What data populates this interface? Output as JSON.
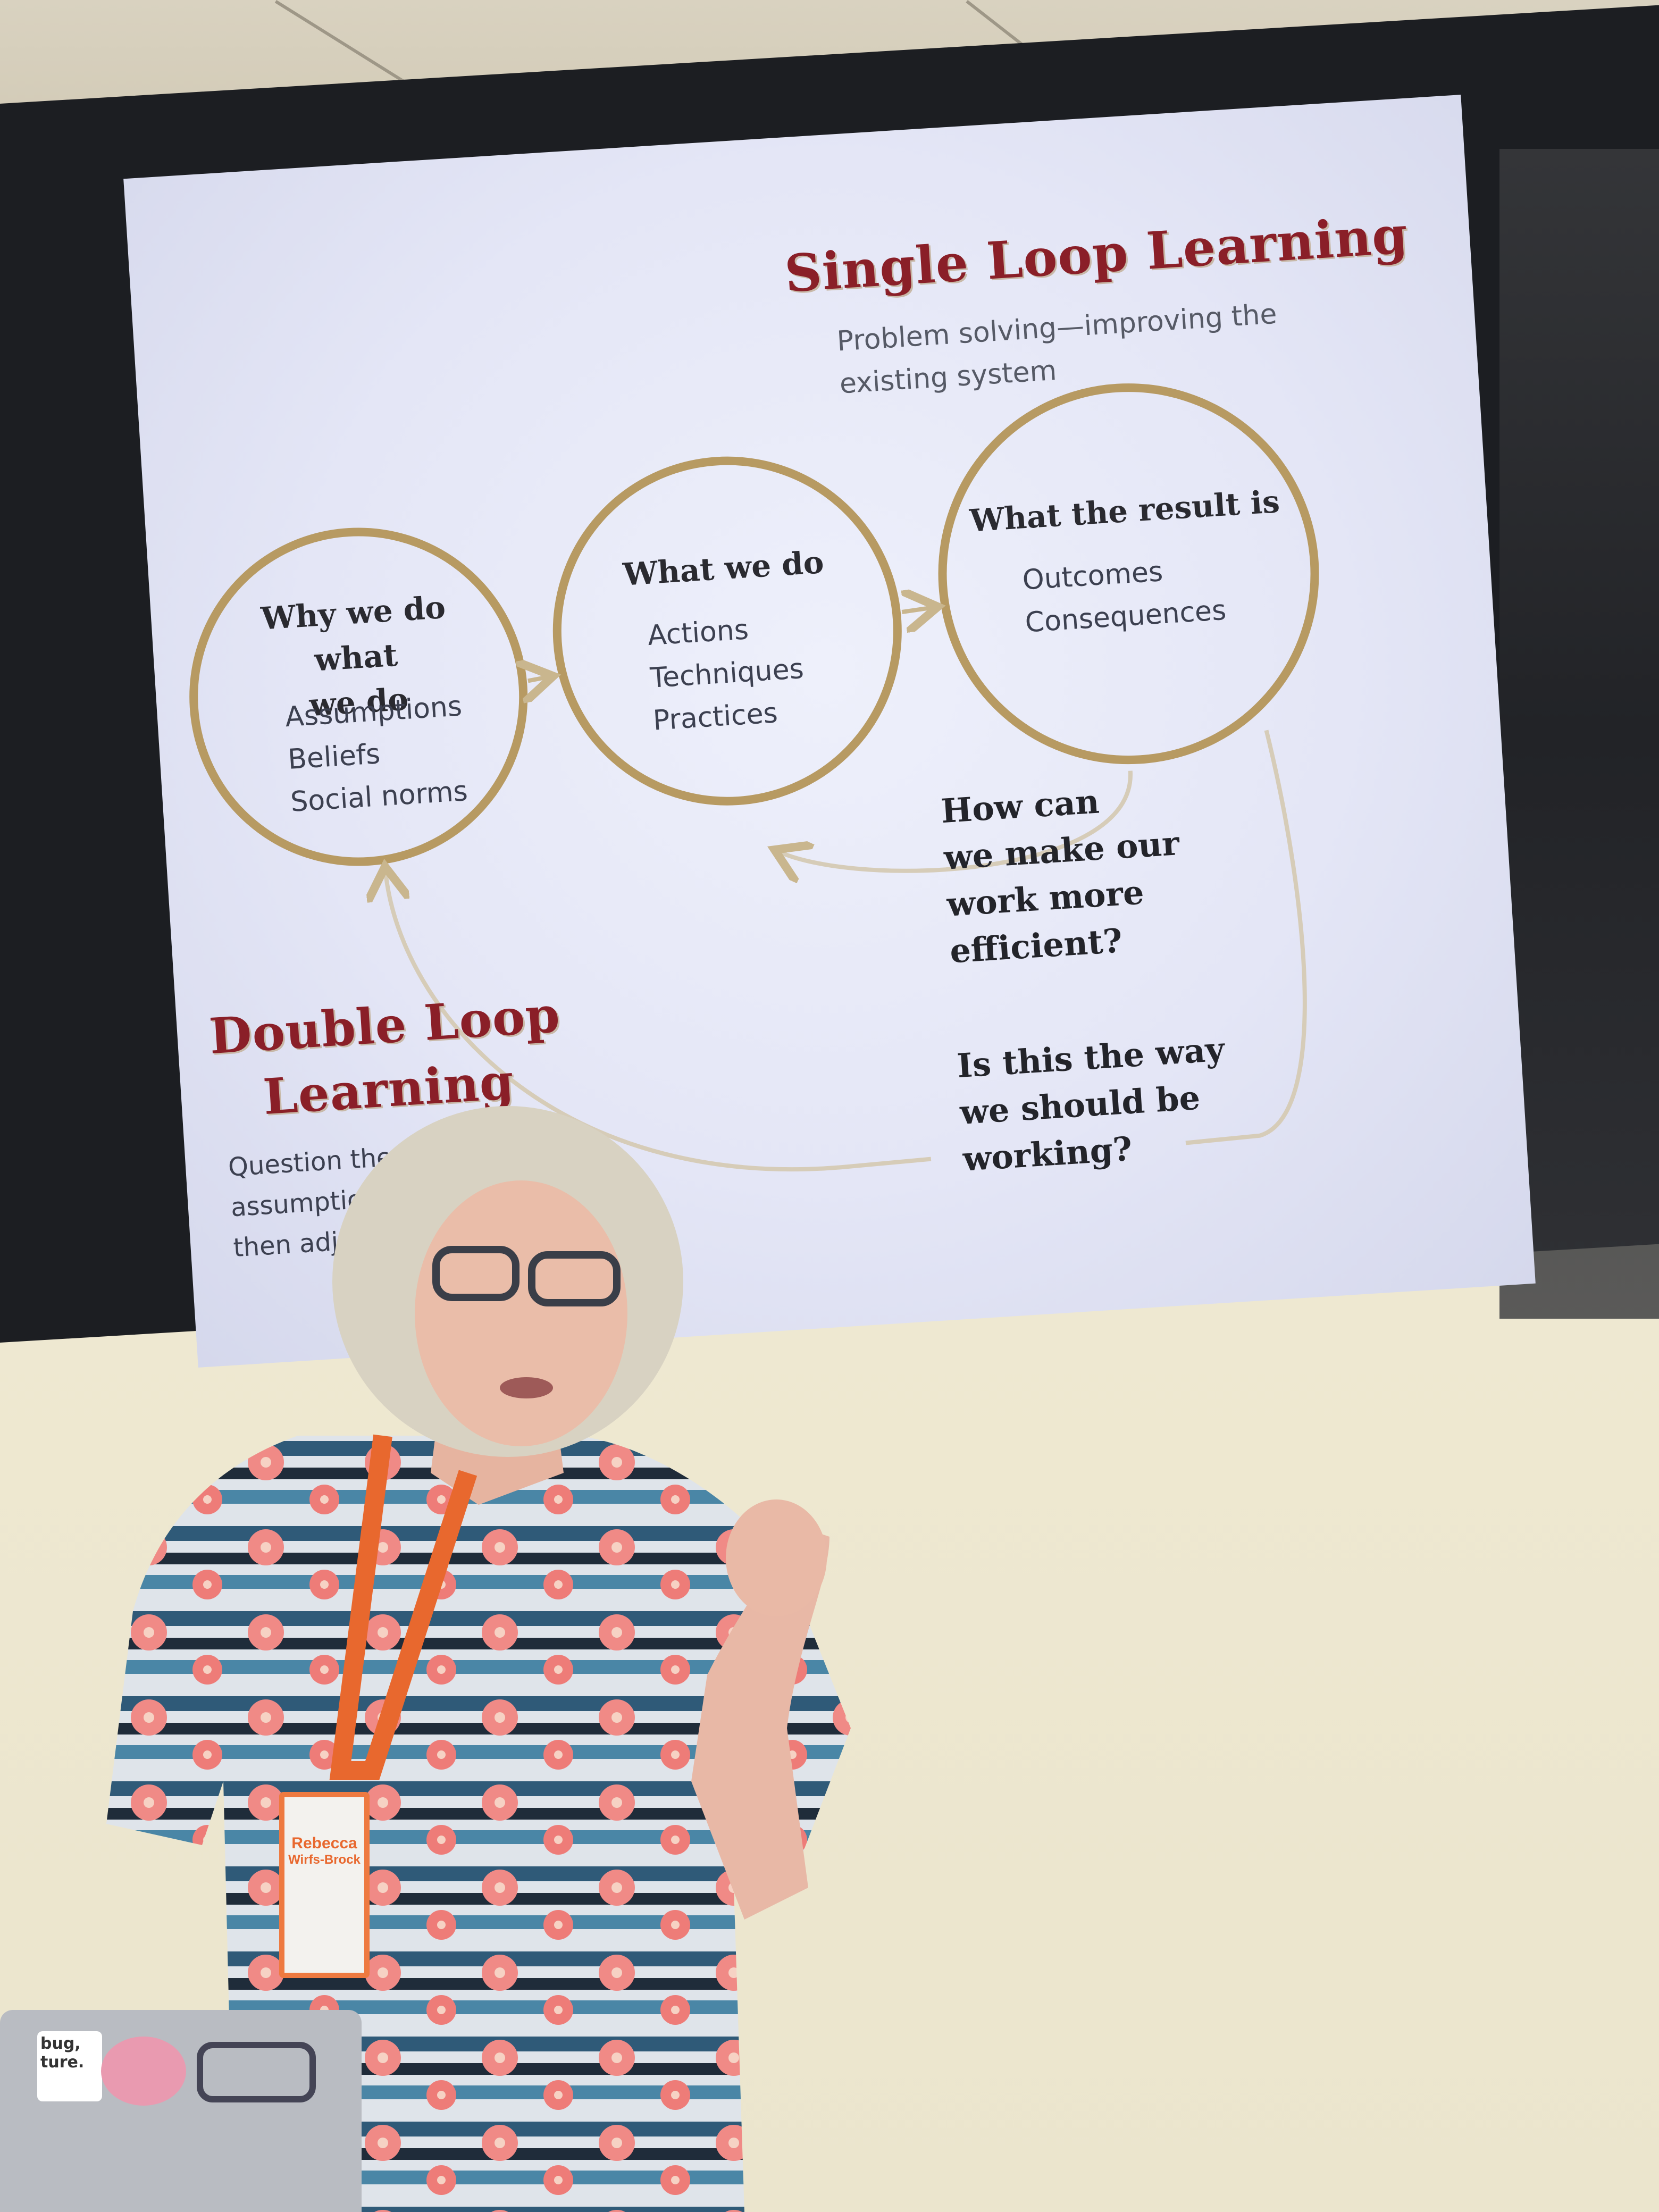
{
  "slide": {
    "single_loop": {
      "title": "Single Loop Learning",
      "subtitle_lines": [
        "Problem solving—improving the",
        "existing system"
      ]
    },
    "double_loop": {
      "title_lines": [
        "Double Loop",
        "Learning"
      ],
      "subtitle_lines": [
        "Question the underly",
        "assumptions, an",
        "then adjust"
      ]
    },
    "circles": [
      {
        "title_lines": [
          "Why we do what",
          "we do"
        ],
        "items": [
          "Assumptions",
          "Beliefs",
          "Social norms"
        ]
      },
      {
        "title_lines": [
          "What we do"
        ],
        "items": [
          "Actions",
          "Techniques",
          "Practices"
        ]
      },
      {
        "title_lines": [
          "What the result is"
        ],
        "items": [
          "Outcomes",
          "Consequences"
        ]
      }
    ],
    "questions": {
      "single": [
        "How can",
        "we make our",
        "work more",
        "efficient?"
      ],
      "double": [
        "Is this the way",
        "we should be",
        "working?"
      ]
    },
    "colors": {
      "title": "#8a1f28",
      "circle_ring": "#b79a62",
      "slide_bg": "#e4e6f6"
    }
  },
  "badge": {
    "name_lines": [
      "Rebecca",
      "Wirfs-Brock"
    ],
    "lanyard_color": "#e8682e"
  },
  "laptop_stickers": [
    "bug,",
    "ture."
  ]
}
